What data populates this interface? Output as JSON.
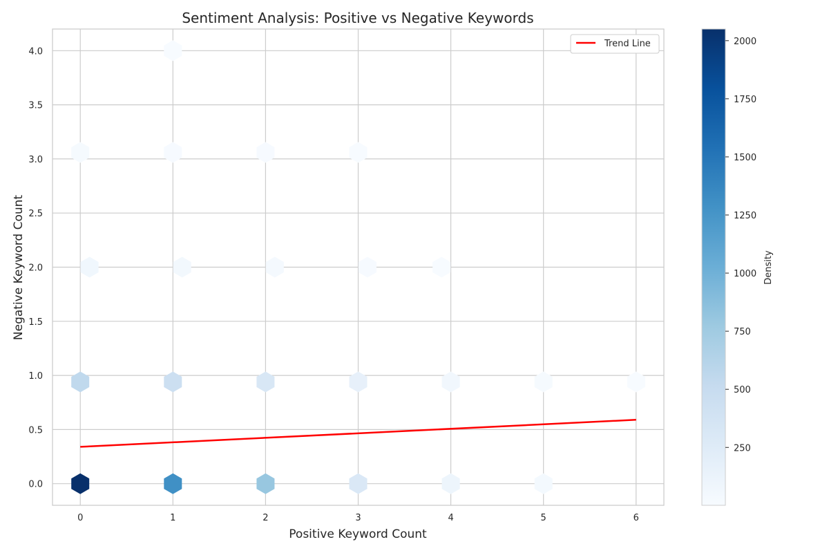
{
  "chart_data": {
    "type": "hexbin",
    "title": "Sentiment Analysis: Positive vs Negative Keywords",
    "xlabel": "Positive Keyword Count",
    "ylabel": "Negative Keyword Count",
    "xlim": [
      -0.3,
      6.3
    ],
    "ylim": [
      -0.2,
      4.2
    ],
    "x_ticks": [
      0,
      1,
      2,
      3,
      4,
      5,
      6
    ],
    "y_ticks": [
      0.0,
      0.5,
      1.0,
      1.5,
      2.0,
      2.5,
      3.0,
      3.5,
      4.0
    ],
    "y_tick_labels": [
      "0.0",
      "0.5",
      "1.0",
      "1.5",
      "2.0",
      "2.5",
      "3.0",
      "3.5",
      "4.0"
    ],
    "grid": true,
    "colormap": "Blues",
    "colorbar": {
      "label": "Density",
      "range": [
        1,
        2050
      ],
      "ticks": [
        250,
        500,
        750,
        1000,
        1250,
        1500,
        1750,
        2000
      ]
    },
    "bins": [
      {
        "x": 0,
        "y": 0,
        "count": 2050
      },
      {
        "x": 1,
        "y": 0,
        "count": 1300
      },
      {
        "x": 2,
        "y": 0,
        "count": 800
      },
      {
        "x": 3,
        "y": 0,
        "count": 300
      },
      {
        "x": 4,
        "y": 0,
        "count": 100
      },
      {
        "x": 5,
        "y": 0,
        "count": 40
      },
      {
        "x": 0,
        "y": 0.94,
        "count": 550
      },
      {
        "x": 1,
        "y": 0.94,
        "count": 450
      },
      {
        "x": 2,
        "y": 0.94,
        "count": 320
      },
      {
        "x": 3,
        "y": 0.94,
        "count": 170
      },
      {
        "x": 4,
        "y": 0.94,
        "count": 60
      },
      {
        "x": 5,
        "y": 0.94,
        "count": 20
      },
      {
        "x": 6,
        "y": 0.94,
        "count": 5
      },
      {
        "x": 0.1,
        "y": 2.0,
        "count": 70
      },
      {
        "x": 1.1,
        "y": 2.0,
        "count": 50
      },
      {
        "x": 2.1,
        "y": 2.0,
        "count": 30
      },
      {
        "x": 3.1,
        "y": 2.0,
        "count": 15
      },
      {
        "x": 3.9,
        "y": 2.0,
        "count": 5
      },
      {
        "x": 0,
        "y": 3.06,
        "count": 20
      },
      {
        "x": 1,
        "y": 3.06,
        "count": 15
      },
      {
        "x": 2,
        "y": 3.06,
        "count": 10
      },
      {
        "x": 3,
        "y": 3.06,
        "count": 5
      },
      {
        "x": 1,
        "y": 4.0,
        "count": 3
      }
    ],
    "series": [
      {
        "name": "Trend Line",
        "type": "line",
        "color": "#ff0000",
        "x": [
          0,
          6
        ],
        "y": [
          0.34,
          0.59
        ]
      }
    ],
    "legend": {
      "entries": [
        "Trend Line"
      ],
      "placement": "upper right"
    }
  }
}
